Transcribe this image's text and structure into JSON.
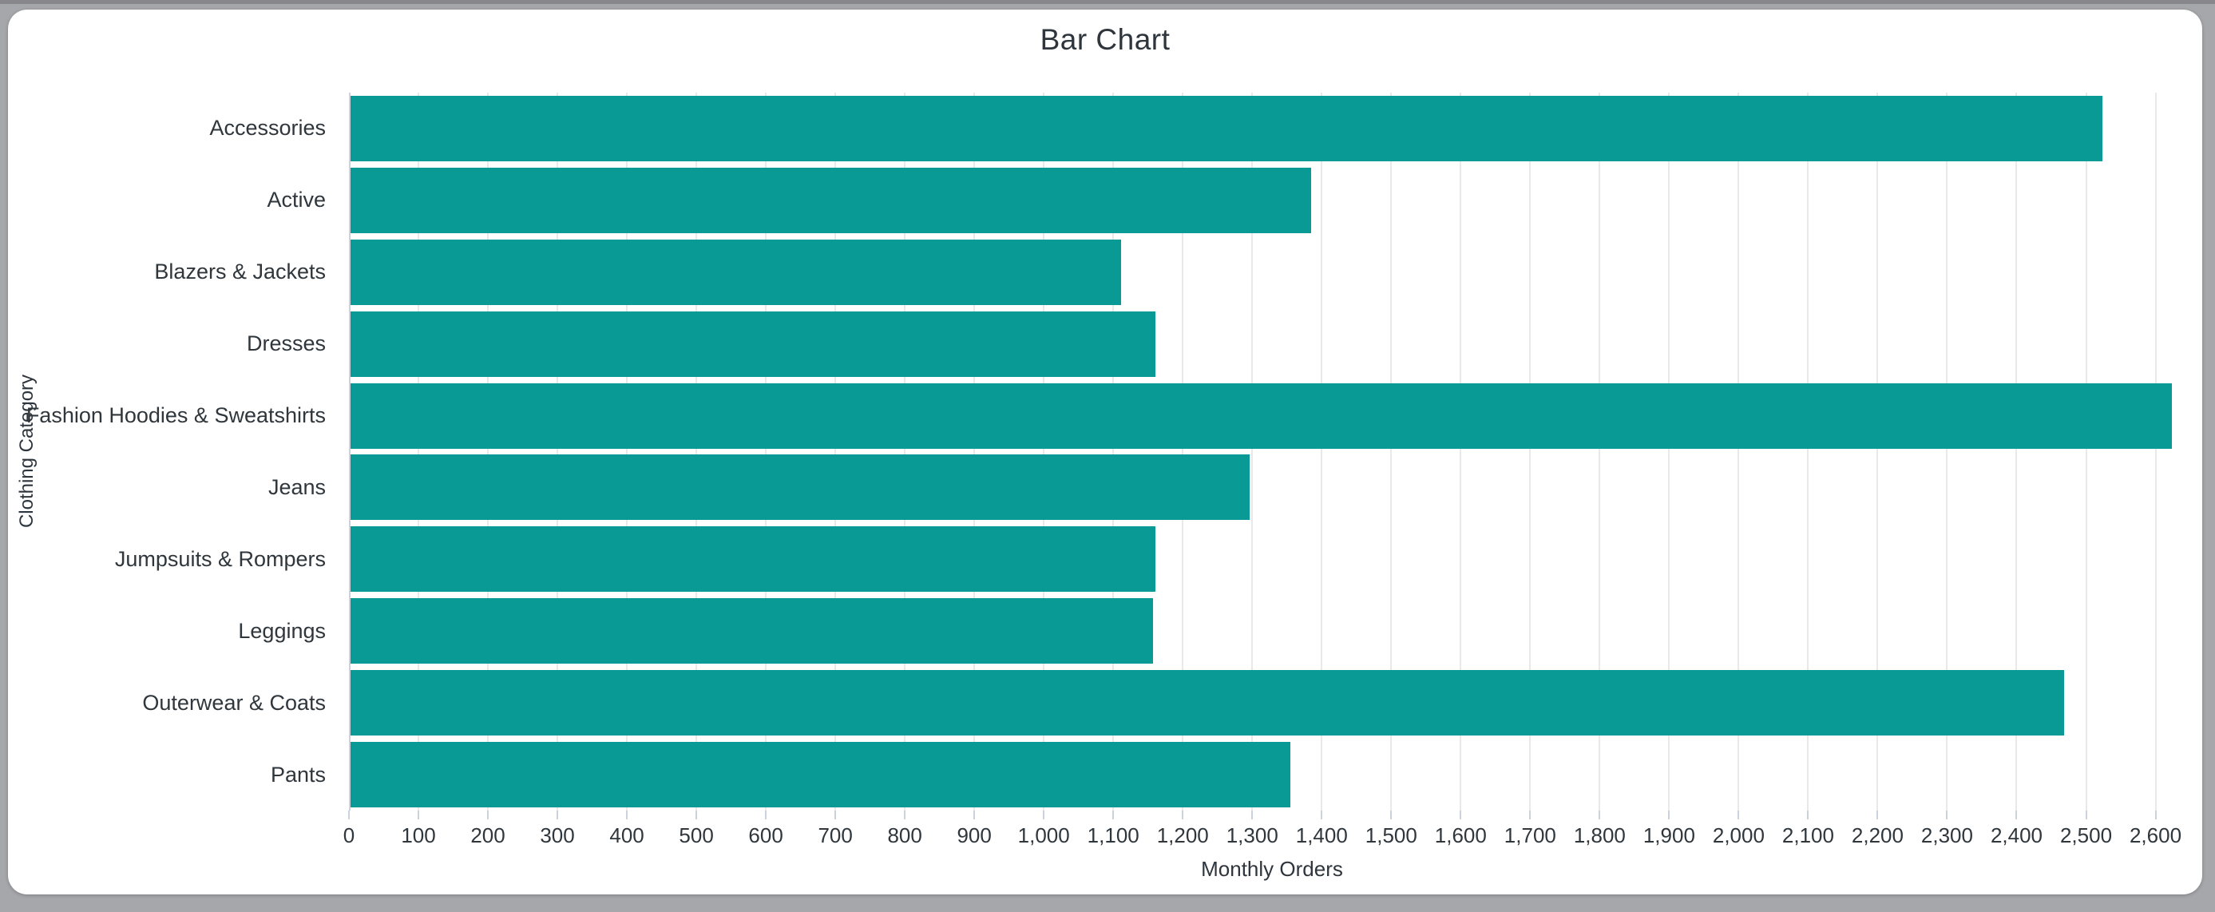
{
  "window": {
    "background_color": "#a6a7ab",
    "card_color": "#ffffff"
  },
  "chart_data": {
    "type": "bar",
    "orientation": "horizontal",
    "title": "Bar Chart",
    "xlabel": "Monthly Orders",
    "ylabel": "Clothing Category",
    "categories": [
      "Accessories",
      "Active",
      "Blazers & Jackets",
      "Dresses",
      "Fashion Hoodies & Sweatshirts",
      "Jeans",
      "Jumpsuits & Rompers",
      "Leggings",
      "Outerwear & Coats",
      "Pants"
    ],
    "values": [
      2521,
      1383,
      1109,
      1158,
      2621,
      1294,
      1158,
      1155,
      2466,
      1352
    ],
    "xlim": [
      0,
      2658
    ],
    "xtick_labels": [
      "0",
      "100",
      "200",
      "300",
      "400",
      "500",
      "600",
      "700",
      "800",
      "900",
      "1,000",
      "1,100",
      "1,200",
      "1,300",
      "1,400",
      "1,500",
      "1,600",
      "1,700",
      "1,800",
      "1,900",
      "2,000",
      "2,100",
      "2,200",
      "2,300",
      "2,400",
      "2,500",
      "2,600"
    ],
    "bar_color": "#0a9a96",
    "gridline_color": "#e9e9e9",
    "axis_line_color": "#ccd2dd",
    "text_color": "#2f363c",
    "grid": true,
    "legend": false
  }
}
